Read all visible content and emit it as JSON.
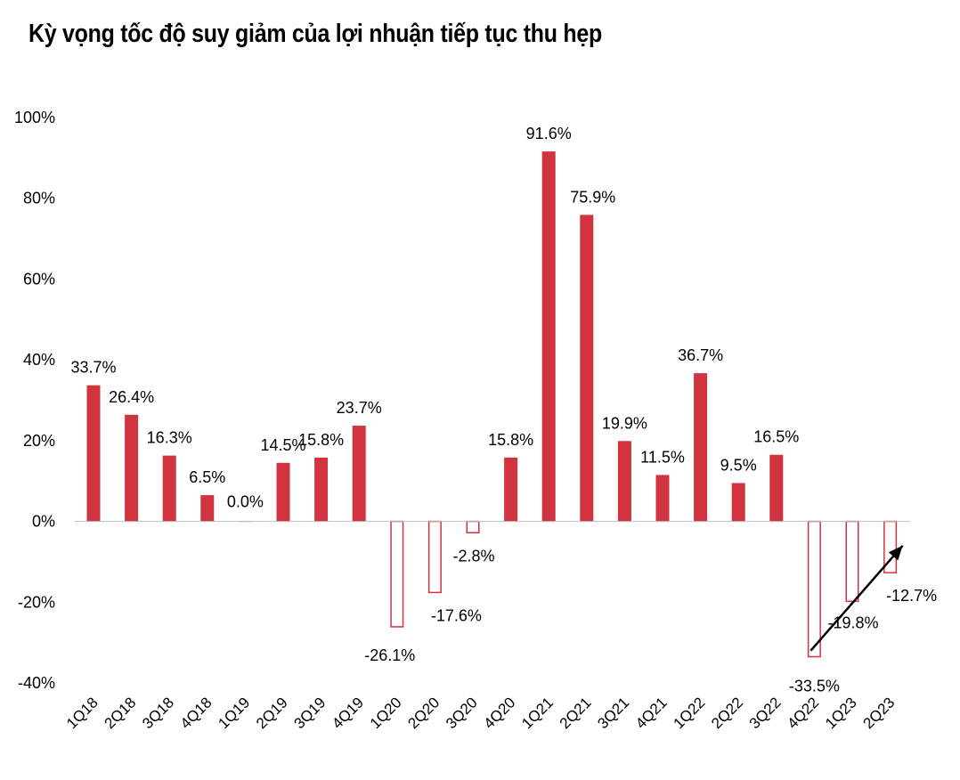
{
  "chart_data": {
    "type": "bar",
    "title": "Kỳ vọng tốc độ suy giảm của lợi nhuận tiếp tục thu hẹp",
    "xlabel": "",
    "ylabel": "",
    "ylim": [
      -40,
      100
    ],
    "y_ticks": [
      100,
      80,
      60,
      40,
      20,
      0,
      -20,
      -40
    ],
    "y_tick_labels": [
      "100%",
      "80%",
      "60%",
      "40%",
      "20%",
      "0%",
      "-20%",
      "-40%"
    ],
    "grid": false,
    "legend": "none",
    "categories": [
      "1Q18",
      "2Q18",
      "3Q18",
      "4Q18",
      "1Q19",
      "2Q19",
      "3Q19",
      "4Q19",
      "1Q20",
      "2Q20",
      "3Q20",
      "4Q20",
      "1Q21",
      "2Q21",
      "3Q21",
      "4Q21",
      "1Q22",
      "2Q22",
      "3Q22",
      "4Q22",
      "1Q23",
      "2Q23"
    ],
    "values": [
      33.7,
      26.4,
      16.3,
      6.5,
      0.0,
      14.5,
      15.8,
      23.7,
      -26.1,
      -17.6,
      -2.8,
      15.8,
      91.6,
      75.9,
      19.9,
      11.5,
      36.7,
      9.5,
      16.5,
      -33.5,
      -19.8,
      -12.7
    ],
    "data_labels": [
      "33.7%",
      "26.4%",
      "16.3%",
      "6.5%",
      "0.0%",
      "14.5%",
      "15.8%",
      "23.7%",
      "-26.1%",
      "-17.6%",
      "-2.8%",
      "15.8%",
      "91.6%",
      "75.9%",
      "19.9%",
      "11.5%",
      "36.7%",
      "9.5%",
      "16.5%",
      "-33.5%",
      "-19.8%",
      "-12.7%"
    ],
    "colors": {
      "positive_fill": "#d1333f",
      "negative_outline": "#d1333f",
      "axis": "#bfbfbf",
      "text": "#000000",
      "arrow": "#000000"
    },
    "annotations": [
      {
        "type": "arrow",
        "from": {
          "category": "4Q22",
          "y": -32
        },
        "to": {
          "category": "2Q23",
          "y": -6
        }
      }
    ]
  }
}
